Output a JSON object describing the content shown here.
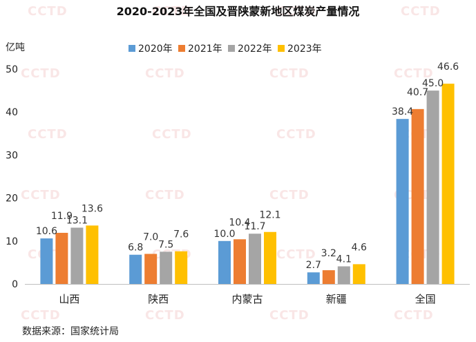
{
  "chart_data": {
    "type": "bar",
    "title": "2020-2023年全国及晋陕蒙新地区煤炭产量情况",
    "ylabel": "亿吨",
    "xlabel": "",
    "ylim": [
      0,
      50
    ],
    "yticks": [
      0,
      10,
      20,
      30,
      40,
      50
    ],
    "categories": [
      "山西",
      "陕西",
      "内蒙古",
      "新疆",
      "全国"
    ],
    "series": [
      {
        "name": "2020年",
        "color": "#5b9bd5",
        "values": [
          10.6,
          6.8,
          10.0,
          2.7,
          38.4
        ]
      },
      {
        "name": "2021年",
        "color": "#ed7d31",
        "values": [
          11.9,
          7.0,
          10.4,
          3.2,
          40.7
        ]
      },
      {
        "name": "2022年",
        "color": "#a5a5a5",
        "values": [
          13.1,
          7.5,
          11.7,
          4.1,
          45.0
        ]
      },
      {
        "name": "2023年",
        "color": "#ffc000",
        "values": [
          13.6,
          7.6,
          12.1,
          4.6,
          46.6
        ]
      }
    ],
    "legend_position": "top",
    "grid": false
  },
  "source": "数据来源：国家统计局",
  "watermark": "CCTD"
}
